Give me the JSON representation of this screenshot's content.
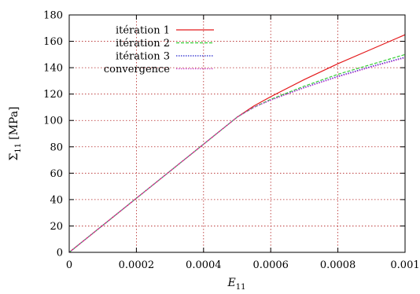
{
  "chart_data": {
    "type": "line",
    "title": "",
    "xlabel": "E",
    "xlabel_sub": "11",
    "ylabel": "Σ",
    "ylabel_sub": "11",
    "ylabel_unit": "[MPa]",
    "xlim": [
      0,
      0.001
    ],
    "ylim": [
      0,
      180
    ],
    "xticks": [
      "0",
      "0.0002",
      "0.0004",
      "0.0006",
      "0.0008",
      "0.001"
    ],
    "yticks": [
      "0",
      "20",
      "40",
      "60",
      "80",
      "100",
      "120",
      "140",
      "160",
      "180"
    ],
    "grid": true,
    "legend_position": "top-left",
    "series": [
      {
        "name": "itération 1",
        "color": "#e41a1c",
        "dash": "solid",
        "x": [
          0,
          0.0001,
          0.0002,
          0.0003,
          0.0004,
          0.0005,
          0.00055,
          0.0006,
          0.0007,
          0.0008,
          0.0009,
          0.001
        ],
        "y": [
          0,
          20.5,
          41,
          61.5,
          82,
          102.5,
          111,
          118,
          131,
          143,
          154,
          165
        ]
      },
      {
        "name": "itération 2",
        "color": "#33cc33",
        "dash": "dashed",
        "x": [
          0,
          0.0001,
          0.0002,
          0.0003,
          0.0004,
          0.0005,
          0.00055,
          0.0006,
          0.0007,
          0.0008,
          0.0009,
          0.001
        ],
        "y": [
          0,
          20.5,
          41,
          61.5,
          82,
          102.5,
          110,
          116,
          126,
          135,
          142.5,
          150
        ]
      },
      {
        "name": "itération 3",
        "color": "#2222cc",
        "dash": "dotted",
        "x": [
          0,
          0.0001,
          0.0002,
          0.0003,
          0.0004,
          0.0005,
          0.00055,
          0.0006,
          0.0007,
          0.0008,
          0.0009,
          0.001
        ],
        "y": [
          0,
          20.5,
          41,
          61.5,
          82,
          102.5,
          110,
          115.5,
          125,
          133.5,
          141,
          148
        ]
      },
      {
        "name": "convergence",
        "color": "#cc44cc",
        "dash": "dotted",
        "x": [
          0,
          0.0001,
          0.0002,
          0.0003,
          0.0004,
          0.0005,
          0.00055,
          0.0006,
          0.0007,
          0.0008,
          0.0009,
          0.001
        ],
        "y": [
          0,
          20.5,
          41,
          61.5,
          82,
          102.5,
          110,
          115.3,
          124.7,
          133,
          140.5,
          147.5
        ]
      }
    ]
  }
}
